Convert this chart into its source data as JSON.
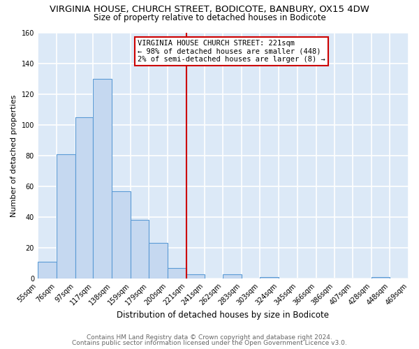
{
  "title": "VIRGINIA HOUSE, CHURCH STREET, BODICOTE, BANBURY, OX15 4DW",
  "subtitle": "Size of property relative to detached houses in Bodicote",
  "xlabel": "Distribution of detached houses by size in Bodicote",
  "ylabel": "Number of detached properties",
  "bin_edges": [
    55,
    76,
    97,
    117,
    138,
    159,
    179,
    200,
    221,
    241,
    262,
    283,
    303,
    324,
    345,
    366,
    386,
    407,
    428,
    448,
    469
  ],
  "bin_labels": [
    "55sqm",
    "76sqm",
    "97sqm",
    "117sqm",
    "138sqm",
    "159sqm",
    "179sqm",
    "200sqm",
    "221sqm",
    "241sqm",
    "262sqm",
    "283sqm",
    "303sqm",
    "324sqm",
    "345sqm",
    "366sqm",
    "386sqm",
    "407sqm",
    "428sqm",
    "448sqm",
    "469sqm"
  ],
  "counts": [
    11,
    81,
    105,
    130,
    57,
    38,
    23,
    7,
    3,
    0,
    3,
    0,
    1,
    0,
    0,
    0,
    0,
    0,
    1,
    0
  ],
  "bar_color": "#c5d8f0",
  "bar_edge_color": "#5b9bd5",
  "vline_x": 221,
  "vline_color": "#cc0000",
  "annotation_line1": "VIRGINIA HOUSE CHURCH STREET: 221sqm",
  "annotation_line2": "← 98% of detached houses are smaller (448)",
  "annotation_line3": "2% of semi-detached houses are larger (8) →",
  "footer_line1": "Contains HM Land Registry data © Crown copyright and database right 2024.",
  "footer_line2": "Contains public sector information licensed under the Open Government Licence v3.0.",
  "figure_bg": "#ffffff",
  "axes_bg": "#dce9f7",
  "grid_color": "#ffffff",
  "ylim": [
    0,
    160
  ],
  "title_fontsize": 9.5,
  "subtitle_fontsize": 8.5,
  "xlabel_fontsize": 8.5,
  "ylabel_fontsize": 8,
  "tick_fontsize": 7,
  "annotation_fontsize": 7.5,
  "footer_fontsize": 6.5
}
